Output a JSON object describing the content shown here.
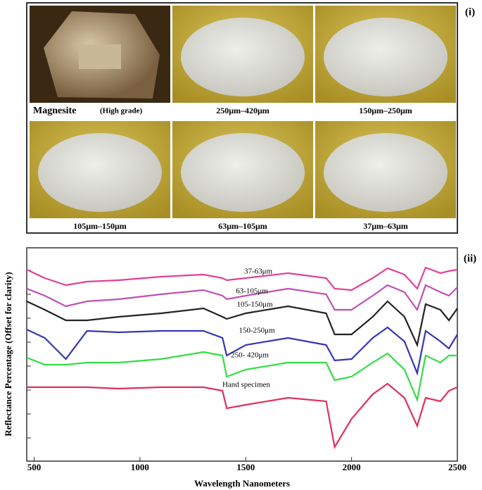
{
  "figure": {
    "panel_label": "(i)",
    "photos": [
      {
        "caption": "Magnesite",
        "note": "(High grade)"
      },
      {
        "caption": "250μm–420μm"
      },
      {
        "caption": "150μm–250μm"
      },
      {
        "caption": "105μm–150μm"
      },
      {
        "caption": "63μm–105μm"
      },
      {
        "caption": "37μm–63μm"
      }
    ]
  },
  "chart_data": {
    "type": "line",
    "panel_label": "(ii)",
    "xlabel": "Wavelength Nanometers",
    "ylabel": "Reflectance Percentage (Offset for clarity)",
    "x": [
      465,
      550,
      650,
      750,
      900,
      1100,
      1300,
      1390,
      1410,
      1500,
      1700,
      1880,
      1920,
      2000,
      2100,
      2170,
      2250,
      2310,
      2350,
      2420,
      2460,
      2500
    ],
    "xlim": [
      465,
      2500
    ],
    "xticks": [
      500,
      1000,
      1500,
      2000,
      2500
    ],
    "ylim": [
      0,
      303
    ],
    "series": [
      {
        "name": "37-63μm",
        "color": "#e0409a",
        "values": [
          272,
          260,
          250,
          255,
          257,
          262,
          265,
          260,
          257,
          260,
          267,
          260,
          245,
          243,
          260,
          274,
          265,
          245,
          275,
          267,
          270,
          272
        ]
      },
      {
        "name": "63-105μm",
        "color": "#c050b0",
        "values": [
          245,
          235,
          220,
          227,
          230,
          237,
          243,
          235,
          230,
          235,
          245,
          237,
          215,
          215,
          235,
          250,
          240,
          215,
          250,
          240,
          235,
          247
        ]
      },
      {
        "name": "105-150μm",
        "color": "#222222",
        "values": [
          227,
          215,
          200,
          200,
          205,
          210,
          217,
          205,
          202,
          210,
          220,
          210,
          180,
          180,
          205,
          227,
          205,
          165,
          223,
          215,
          200,
          217
        ]
      },
      {
        "name": "150-250μm",
        "color": "#3535b8",
        "values": [
          187,
          175,
          145,
          185,
          183,
          185,
          185,
          175,
          150,
          165,
          175,
          165,
          143,
          145,
          175,
          190,
          170,
          125,
          185,
          170,
          160,
          180
        ]
      },
      {
        "name": "250- 420μm",
        "color": "#33dd44",
        "values": [
          147,
          137,
          137,
          140,
          140,
          145,
          155,
          150,
          120,
          130,
          140,
          140,
          115,
          120,
          140,
          153,
          130,
          87,
          150,
          140,
          150,
          150
        ]
      },
      {
        "name": "Hand specimen",
        "color": "#e0305a",
        "values": [
          105,
          105,
          105,
          105,
          103,
          105,
          105,
          100,
          75,
          80,
          90,
          85,
          20,
          60,
          95,
          110,
          90,
          50,
          90,
          85,
          100,
          105
        ]
      }
    ]
  }
}
